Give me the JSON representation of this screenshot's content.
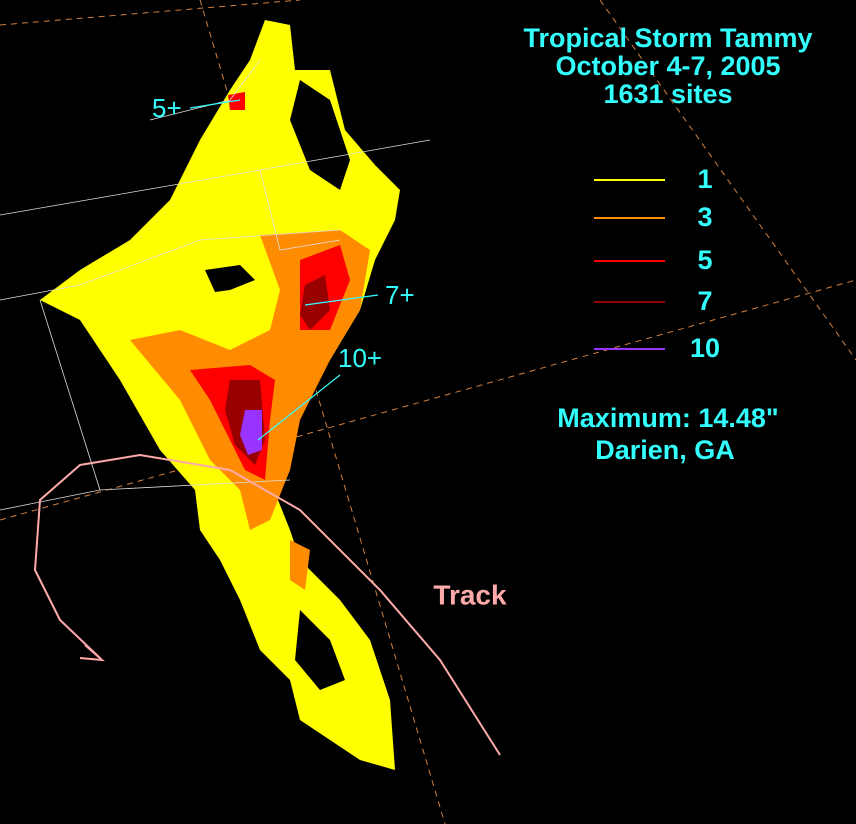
{
  "title": {
    "line1": "Tropical Storm Tammy",
    "line2": "October 4-7, 2005",
    "line3": "1631 sites"
  },
  "legend": [
    {
      "label": 1,
      "color": "#ffff00"
    },
    {
      "label": 3,
      "color": "#ff8c00"
    },
    {
      "label": 5,
      "color": "#ff0000"
    },
    {
      "label": 7,
      "color": "#990000"
    },
    {
      "label": 10,
      "color": "#9933ff"
    }
  ],
  "maximum": {
    "line1": "Maximum: 14.48\"",
    "line2": "Darien, GA"
  },
  "annotations": {
    "a5": "5+",
    "a7": "7+",
    "a10": "10+",
    "track": "Track"
  }
}
